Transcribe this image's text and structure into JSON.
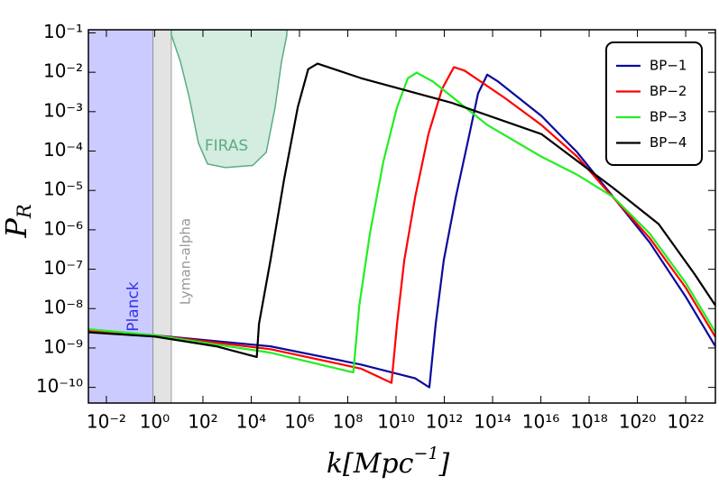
{
  "chart_data": {
    "type": "line",
    "xscale": "log",
    "yscale": "log",
    "xlim": [
      0.0018,
      1.7e+23
    ],
    "ylim": [
      4e-11,
      0.12
    ],
    "xticks": [
      {
        "value": 0.01,
        "label": "10⁻²"
      },
      {
        "value": 1,
        "label": "10⁰"
      },
      {
        "value": 100,
        "label": "10²"
      },
      {
        "value": 10000.0,
        "label": "10⁴"
      },
      {
        "value": 1000000.0,
        "label": "10⁶"
      },
      {
        "value": 100000000.0,
        "label": "10⁸"
      },
      {
        "value": 10000000000.0,
        "label": "10¹⁰"
      },
      {
        "value": 1000000000000.0,
        "label": "10¹²"
      },
      {
        "value": 100000000000000.0,
        "label": "10¹⁴"
      },
      {
        "value": 1e+16,
        "label": "10¹⁶"
      },
      {
        "value": 1e+18,
        "label": "10¹⁸"
      },
      {
        "value": 1e+20,
        "label": "10²⁰"
      },
      {
        "value": 1e+22,
        "label": "10²²"
      }
    ],
    "yticks": [
      {
        "value": 0.1,
        "label": "10⁻¹"
      },
      {
        "value": 0.01,
        "label": "10⁻²"
      },
      {
        "value": 0.001,
        "label": "10⁻³"
      },
      {
        "value": 0.0001,
        "label": "10⁻⁴"
      },
      {
        "value": 1e-05,
        "label": "10⁻⁵"
      },
      {
        "value": 1e-06,
        "label": "10⁻⁶"
      },
      {
        "value": 1e-07,
        "label": "10⁻⁷"
      },
      {
        "value": 1e-08,
        "label": "10⁻⁸"
      },
      {
        "value": 1e-09,
        "label": "10⁻⁹"
      },
      {
        "value": 1e-10,
        "label": "10⁻¹⁰"
      }
    ],
    "xlabel": {
      "text": "k[Mpc",
      "sup": "−1",
      "end": "]"
    },
    "ylabel": {
      "text": "P",
      "sub": "R"
    },
    "legend": "top-right",
    "regions": [
      {
        "label": "Planck",
        "color": "#c2c2ff",
        "line": "#3333ee",
        "xlim": [
          0.0018,
          0.85
        ]
      },
      {
        "label": "Lyman-alpha",
        "color": "#dedede",
        "line": "#999999",
        "xlim": [
          0.85,
          4.9
        ]
      }
    ],
    "firas": {
      "label": "FIRAS",
      "color": "#d5ece0",
      "line": "#5aad80",
      "x": [
        4.9,
        11.7,
        27.5,
        65,
        155,
        850,
        11500,
        42000,
        98000,
        180000,
        300000
      ],
      "values": [
        0.089,
        0.0185,
        0.0022,
        0.00016,
        4.7e-05,
        3.8e-05,
        4.3e-05,
        9.3e-05,
        0.0013,
        0.0185,
        0.089
      ]
    },
    "series": [
      {
        "name": "BP−1",
        "color": "#0a0a9e",
        "x": [
          0.0018,
          1,
          63000,
          350000000.0,
          62000000000.0,
          240000000000.0,
          440000000000.0,
          950000000000.0,
          3000000000000.0,
          11000000000000.0,
          25000000000000.0,
          60000000000000.0,
          170000000000000.0,
          1.05e+16,
          3.2e+17,
          1e+19,
          3.2e+20,
          1e+22,
          1.7e+23
        ],
        "values": [
          2.7e-09,
          2.1e-09,
          1.1e-09,
          3.8e-10,
          1.7e-10,
          1e-10,
          4.1e-09,
          1.7e-07,
          6.8e-06,
          0.00027,
          0.0029,
          0.0087,
          0.0058,
          0.00078,
          9.3e-05,
          6.8e-06,
          4.8e-07,
          2e-08,
          1.1e-09
        ]
      },
      {
        "name": "BP−2",
        "color": "#ff0000",
        "x": [
          0.0018,
          1,
          63000,
          350000000.0,
          6500000000.0,
          11000000000.0,
          22000000000.0,
          62000000000.0,
          220000000000.0,
          810000000000.0,
          2500000000000.0,
          6900000000000.0,
          330000000000000.0,
          1.05e+16,
          3.2e+17,
          4.4e+18,
          3.2e+20,
          1e+22,
          1.7e+23
        ],
        "values": [
          2.7e-09,
          2.1e-09,
          9.3e-10,
          3e-10,
          1.3e-10,
          4.1e-09,
          1.7e-07,
          6.8e-06,
          0.00027,
          0.0038,
          0.0135,
          0.011,
          0.0022,
          0.00046,
          7.2e-05,
          1.15e-05,
          6.2e-07,
          3.4e-08,
          1.9e-09
        ]
      },
      {
        "name": "BP−3",
        "color": "#22ee22",
        "x": [
          0.0018,
          1,
          63000,
          170000000.0,
          300000000.0,
          830000000.0,
          3000000000.0,
          11000000000.0,
          31000000000.0,
          72000000000.0,
          340000000000.0,
          60000000000000.0,
          1.05e+16,
          3.2e+17,
          1e+19,
          3.2e+20,
          1e+22,
          1.7e+23
        ],
        "values": [
          3e-09,
          2.1e-09,
          7.6e-10,
          2.4e-10,
          1.2e-08,
          8.1e-07,
          5.5e-05,
          0.0013,
          0.0071,
          0.0098,
          0.0058,
          0.00046,
          7.2e-05,
          2.5e-05,
          6.8e-06,
          8.1e-07,
          4.5e-08,
          2.5e-09
        ]
      },
      {
        "name": "BP−4",
        "color": "#000000",
        "x": [
          0.0018,
          1,
          360,
          17000,
          21000,
          63000,
          230000,
          850000,
          2300000,
          5600000,
          350000000.0,
          1900000000000.0,
          1.05e+16,
          1e+19,
          7.6e+20,
          2.3e+22,
          1.7e+23
        ],
        "values": [
          2.5e-09,
          1.95e-09,
          1.1e-09,
          5.9e-10,
          4.1e-09,
          1.7e-07,
          1.9e-05,
          0.0013,
          0.012,
          0.0166,
          0.0071,
          0.0017,
          0.00027,
          1.15e-05,
          1.4e-06,
          7.6e-08,
          1.2e-08
        ]
      }
    ]
  }
}
